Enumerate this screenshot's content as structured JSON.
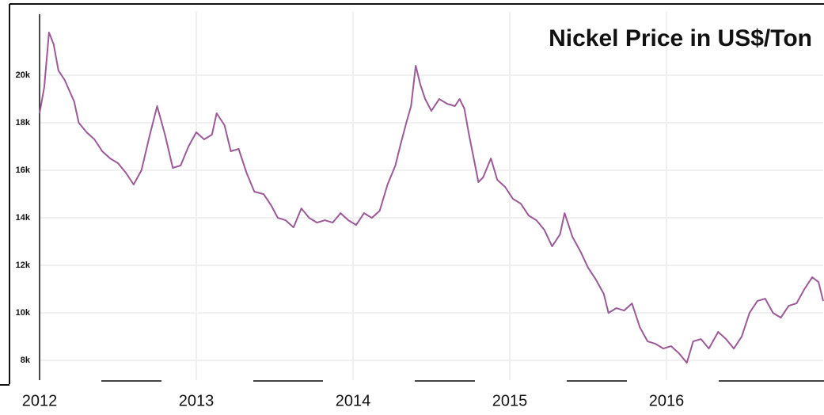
{
  "chart_data": {
    "type": "line",
    "title": "Nickel Price in US$/Ton",
    "xlim": [
      2012,
      2017
    ],
    "xticks": [
      2012,
      2013,
      2014,
      2015,
      2016
    ],
    "ylim": [
      7170,
      23000
    ],
    "yticks": [
      {
        "value": 8000,
        "label": "8k"
      },
      {
        "value": 10000,
        "label": "10k"
      },
      {
        "value": 12000,
        "label": "12k"
      },
      {
        "value": 14000,
        "label": "14k"
      },
      {
        "value": 16000,
        "label": "16k"
      },
      {
        "value": 18000,
        "label": "18k"
      },
      {
        "value": 20000,
        "label": "20k"
      }
    ],
    "grid": true,
    "series": [
      {
        "color": "#9b5a97",
        "x": [
          2012.0,
          2012.03,
          2012.06,
          2012.09,
          2012.12,
          2012.16,
          2012.22,
          2012.25,
          2012.3,
          2012.35,
          2012.4,
          2012.45,
          2012.5,
          2012.55,
          2012.6,
          2012.65,
          2012.7,
          2012.75,
          2012.8,
          2012.85,
          2012.9,
          2012.95,
          2013.0,
          2013.05,
          2013.1,
          2013.13,
          2013.18,
          2013.22,
          2013.27,
          2013.32,
          2013.37,
          2013.43,
          2013.48,
          2013.52,
          2013.57,
          2013.62,
          2013.67,
          2013.72,
          2013.77,
          2013.82,
          2013.87,
          2013.92,
          2013.97,
          2014.02,
          2014.07,
          2014.12,
          2014.17,
          2014.22,
          2014.27,
          2014.3,
          2014.34,
          2014.37,
          2014.4,
          2014.43,
          2014.46,
          2014.5,
          2014.55,
          2014.6,
          2014.65,
          2014.68,
          2014.71,
          2014.74,
          2014.77,
          2014.8,
          2014.83,
          2014.88,
          2014.92,
          2014.97,
          2015.02,
          2015.07,
          2015.12,
          2015.17,
          2015.22,
          2015.27,
          2015.32,
          2015.35,
          2015.4,
          2015.45,
          2015.5,
          2015.55,
          2015.6,
          2015.63,
          2015.68,
          2015.73,
          2015.78,
          2015.83,
          2015.88,
          2015.93,
          2015.98,
          2016.03,
          2016.08,
          2016.13,
          2016.17,
          2016.22,
          2016.27,
          2016.33,
          2016.38,
          2016.43,
          2016.48,
          2016.53,
          2016.58,
          2016.63,
          2016.68,
          2016.73,
          2016.78,
          2016.83,
          2016.88,
          2016.93,
          2016.97,
          2017.0
        ],
        "values": [
          18400,
          19500,
          21800,
          21300,
          20200,
          19800,
          18900,
          18000,
          17600,
          17300,
          16800,
          16500,
          16300,
          15900,
          15400,
          16000,
          17400,
          18700,
          17500,
          16100,
          16200,
          17000,
          17600,
          17300,
          17500,
          18400,
          17900,
          16800,
          16900,
          15900,
          15100,
          15000,
          14500,
          14000,
          13900,
          13600,
          14400,
          14000,
          13800,
          13900,
          13800,
          14200,
          13900,
          13700,
          14200,
          14000,
          14300,
          15400,
          16200,
          17000,
          18000,
          18700,
          20400,
          19600,
          19000,
          18500,
          19000,
          18800,
          18700,
          19000,
          18600,
          17500,
          16500,
          15500,
          15700,
          16500,
          15600,
          15300,
          14800,
          14600,
          14100,
          13900,
          13500,
          12800,
          13300,
          14200,
          13200,
          12600,
          11900,
          11400,
          10800,
          10000,
          10200,
          10100,
          10400,
          9400,
          8800,
          8700,
          8500,
          8600,
          8300,
          7900,
          8800,
          8900,
          8500,
          9200,
          8900,
          8500,
          9000,
          10000,
          10500,
          10600,
          10000,
          9800,
          10300,
          10400,
          11000,
          11500,
          11300,
          10500
        ]
      }
    ]
  }
}
